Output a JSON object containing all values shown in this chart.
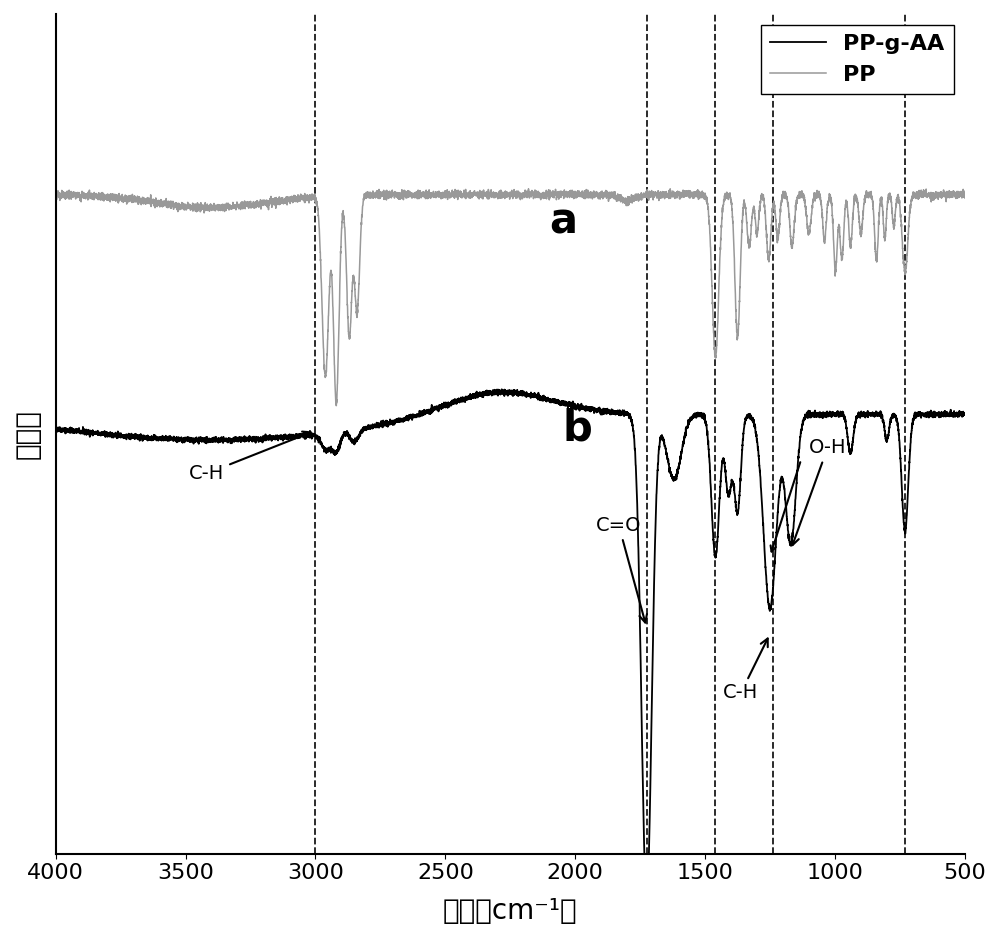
{
  "xlabel": "波长（cm⁻¹）",
  "ylabel": "吸光度",
  "xlim": [
    4000,
    500
  ],
  "x_ticks": [
    4000,
    3500,
    3000,
    2500,
    2000,
    1500,
    1000,
    500
  ],
  "dashed_lines": [
    3000,
    1725,
    1460,
    1240,
    730
  ],
  "legend_labels": [
    "PP-g-AA",
    "PP"
  ],
  "label_a": "a",
  "label_b": "b",
  "background_color": "#ffffff",
  "pp_gaa_color": "#000000",
  "pp_color": "#999999"
}
